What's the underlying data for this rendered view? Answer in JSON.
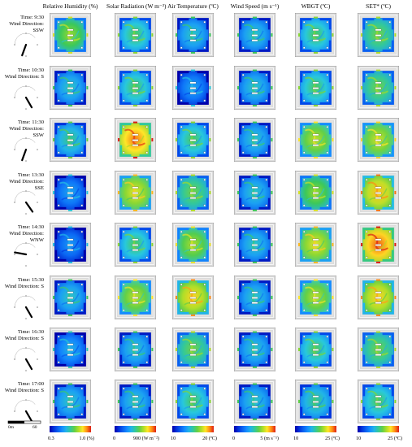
{
  "columns": [
    {
      "title": "Relative Humidity (%)",
      "colormap": "rh",
      "min_label": "0.3",
      "max_label": "1.0 (%)"
    },
    {
      "title": "Solar Radiation (W m⁻²)",
      "colormap": "sr",
      "min_label": "0",
      "max_label": "900 (W m⁻²)"
    },
    {
      "title": "Air Temperature (ºC)",
      "colormap": "at",
      "min_label": "10",
      "max_label": "20 (ºC)"
    },
    {
      "title": "Wind Speed (m s⁻¹)",
      "colormap": "ws",
      "min_label": "0",
      "max_label": "5 (m s⁻¹)"
    },
    {
      "title": "WBGT (ºC)",
      "colormap": "wb",
      "min_label": "10",
      "max_label": "25 (ºC)"
    },
    {
      "title": "SET* (ºC)",
      "colormap": "set",
      "min_label": "10",
      "max_label": "25 (ºC)"
    }
  ],
  "rows": [
    {
      "time": "Time: 9:30",
      "wind": "Wind Direction: SSW",
      "wind_deg": 200
    },
    {
      "time": "Time: 10:30",
      "wind": "Wind Direction: S",
      "wind_deg": 150
    },
    {
      "time": "Time: 11:30",
      "wind": "Wind Direction: SSW",
      "wind_deg": 200
    },
    {
      "time": "Time: 13:30",
      "wind": "Wind Direction: SSE",
      "wind_deg": 145
    },
    {
      "time": "Time: 14:30",
      "wind": "Wind Direction: WNW",
      "wind_deg": 280
    },
    {
      "time": "Time: 15:30",
      "wind": "Wind Direction: S",
      "wind_deg": 150
    },
    {
      "time": "Time: 16:30",
      "wind": "Wind Direction: S",
      "wind_deg": 150
    },
    {
      "time": "Time: 17:00",
      "wind": "Wind Direction: S",
      "wind_deg": 150
    }
  ],
  "cell_levels": [
    [
      0.55,
      0.45,
      0.35,
      0.35,
      0.45,
      0.5
    ],
    [
      0.35,
      0.45,
      0.25,
      0.35,
      0.45,
      0.5
    ],
    [
      0.4,
      0.8,
      0.45,
      0.35,
      0.6,
      0.62
    ],
    [
      0.25,
      0.65,
      0.5,
      0.35,
      0.55,
      0.72
    ],
    [
      0.22,
      0.45,
      0.58,
      0.35,
      0.65,
      0.82
    ],
    [
      0.35,
      0.6,
      0.7,
      0.35,
      0.6,
      0.7
    ],
    [
      0.28,
      0.35,
      0.5,
      0.35,
      0.45,
      0.5
    ],
    [
      0.35,
      0.35,
      0.45,
      0.35,
      0.4,
      0.45
    ]
  ],
  "scale_bar": {
    "start_label": "0m",
    "end_label": "60"
  }
}
